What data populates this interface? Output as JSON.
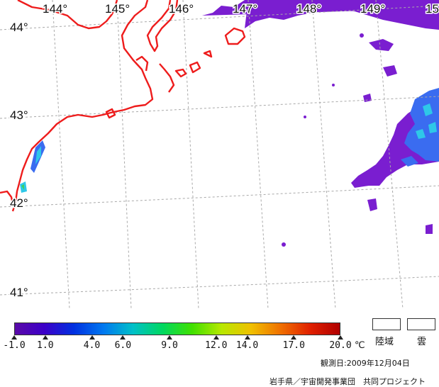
{
  "map": {
    "lon_labels": [
      "144°",
      "145°",
      "146°",
      "147°",
      "148°",
      "149°",
      "15"
    ],
    "lat_labels": [
      "44°",
      "43°",
      "42°",
      "41°"
    ],
    "colors": {
      "coast": "#ee1c1c",
      "grid": "#a9a9a9",
      "sst_purple": "#7a1ed0",
      "sst_blue": "#3a6cf0",
      "sst_cyan": "#2ec8e8",
      "sst_green": "#3fd060"
    }
  },
  "legend": {
    "tick_labels": [
      "-1.0",
      "1.0",
      "4.0",
      "6.0",
      "9.0",
      "12.0",
      "14.0",
      "17.0",
      "20.0"
    ],
    "tick_values": [
      -1.0,
      1.0,
      4.0,
      6.0,
      9.0,
      12.0,
      14.0,
      17.0,
      20.0
    ],
    "range": [
      -1.0,
      20.0
    ],
    "unit": "℃",
    "land_label": "陸域",
    "cloud_label": "雲",
    "observation_date": "観測日:2009年12月04日",
    "credit": "岩手県／宇宙開発事業団　共同プロジェクト",
    "colorbar_stops": [
      "#5a0aa8",
      "#3c00c8",
      "#0030e0",
      "#0078f0",
      "#00c0c8",
      "#00d860",
      "#40e000",
      "#b8e800",
      "#f0c000",
      "#f07000",
      "#e02000",
      "#b00000"
    ]
  }
}
